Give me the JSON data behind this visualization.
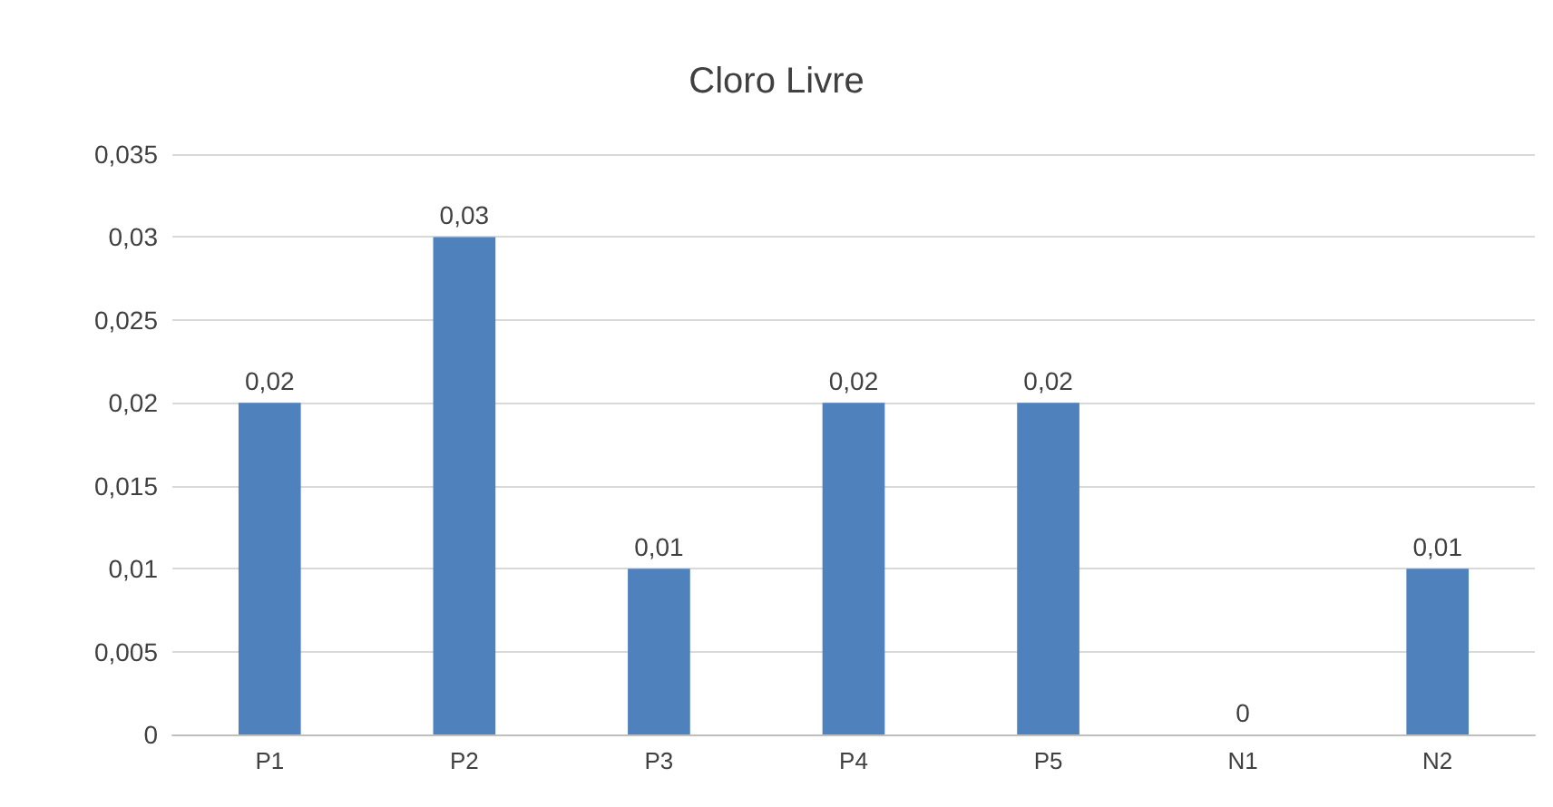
{
  "chart_data": {
    "type": "bar",
    "title": "Cloro Livre",
    "categories": [
      "P1",
      "P2",
      "P3",
      "P4",
      "P5",
      "N1",
      "N2"
    ],
    "values": [
      0.02,
      0.03,
      0.01,
      0.02,
      0.02,
      0,
      0.01
    ],
    "value_labels": [
      "0,02",
      "0,03",
      "0,01",
      "0,02",
      "0,02",
      "0",
      "0,01"
    ],
    "color": "#4f81bd",
    "ylim": [
      0,
      0.035
    ],
    "yticks": [
      {
        "value": 0,
        "label": "0"
      },
      {
        "value": 0.005,
        "label": "0,005"
      },
      {
        "value": 0.01,
        "label": "0,01"
      },
      {
        "value": 0.015,
        "label": "0,015"
      },
      {
        "value": 0.02,
        "label": "0,02"
      },
      {
        "value": 0.025,
        "label": "0,025"
      },
      {
        "value": 0.03,
        "label": "0,03"
      },
      {
        "value": 0.035,
        "label": "0,035"
      }
    ],
    "grid": true
  }
}
